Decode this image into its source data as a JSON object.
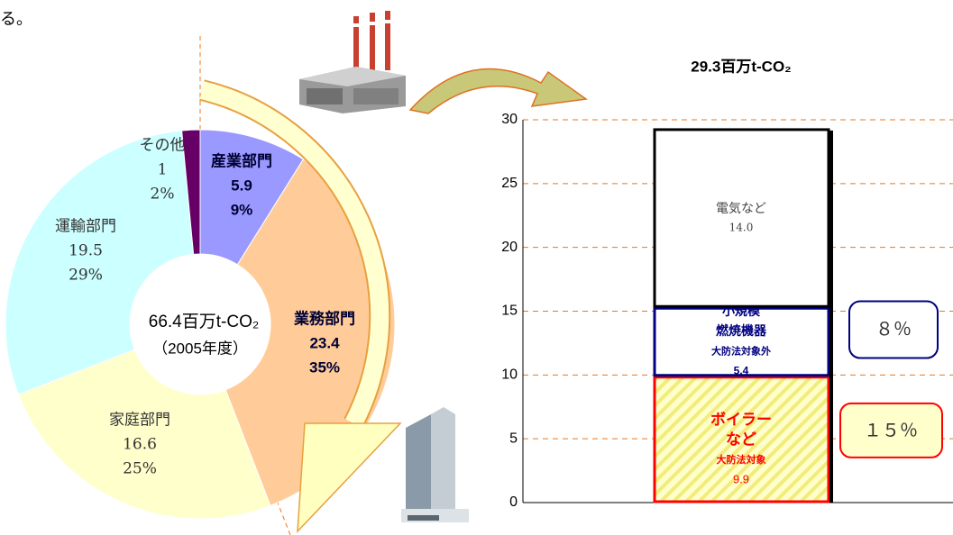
{
  "intro_text": "る。",
  "chart_data": [
    {
      "type": "donut",
      "total": 66.4,
      "total_label": "66.4百万t-CO₂",
      "year_label": "（2005年度）",
      "categories": [
        "産業部門",
        "業務部門",
        "家庭部門",
        "運輸部門",
        "その他"
      ],
      "values": [
        5.9,
        23.4,
        16.6,
        19.5,
        1
      ],
      "percents": [
        9,
        35,
        25,
        29,
        2
      ],
      "percent_labels": [
        "9%",
        "35%",
        "25%",
        "29%",
        "2%"
      ],
      "colors": [
        "#9999ff",
        "#ffcc99",
        "#ffffcc",
        "#ccffff",
        "#660066"
      ]
    },
    {
      "type": "stacked-bar",
      "title": "29.3百万t-CO₂",
      "total": 29.3,
      "ylim": [
        0,
        30
      ],
      "yticks": [
        0,
        5,
        10,
        15,
        20,
        25,
        30
      ],
      "grid": true,
      "series": [
        {
          "name_lines": [
            "ボイラー",
            "など"
          ],
          "sublabel": "大防法対象",
          "value": 9.9,
          "color": "#ff0000",
          "fill": "hatch",
          "share": 15,
          "share_label": "１５％"
        },
        {
          "name_lines": [
            "小規模",
            "燃焼機器"
          ],
          "sublabel": "大防法対象外",
          "value": 5.4,
          "color": "#000080",
          "fill": "#ffffff",
          "share": 8,
          "share_label": "８％"
        },
        {
          "name_lines": [
            "電気など"
          ],
          "value": 14,
          "value_label": "14.0",
          "color": "#000000",
          "fill": "#ffffff"
        }
      ]
    }
  ]
}
